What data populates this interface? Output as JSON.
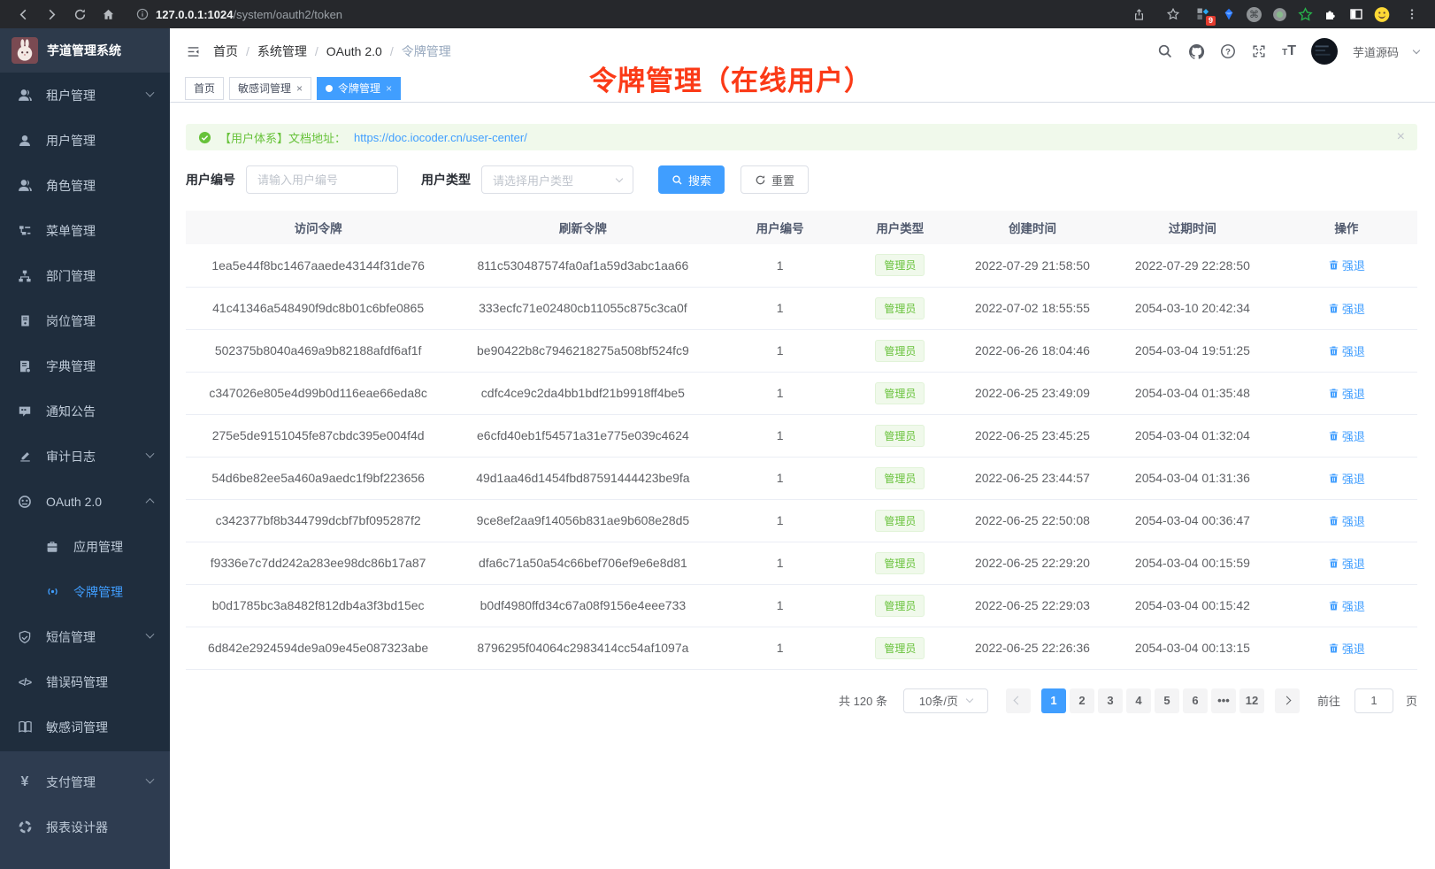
{
  "browser": {
    "url_host": "127.0.0.1:1024",
    "url_path": "/system/oauth2/token",
    "ext_badge": "9"
  },
  "sidebar": {
    "logo_title": "芋道管理系统",
    "menu": [
      {
        "label": "租户管理",
        "icon": "tenant-icon",
        "chevron": "down"
      },
      {
        "label": "用户管理",
        "icon": "user-icon"
      },
      {
        "label": "角色管理",
        "icon": "role-icon"
      },
      {
        "label": "菜单管理",
        "icon": "menu-tree-icon"
      },
      {
        "label": "部门管理",
        "icon": "dept-icon"
      },
      {
        "label": "岗位管理",
        "icon": "post-icon"
      },
      {
        "label": "字典管理",
        "icon": "dict-icon"
      },
      {
        "label": "通知公告",
        "icon": "notice-icon"
      },
      {
        "label": "审计日志",
        "icon": "audit-icon",
        "chevron": "down"
      },
      {
        "label": "OAuth 2.0",
        "icon": "oauth-icon",
        "chevron": "up"
      },
      {
        "label": "应用管理",
        "icon": "app-icon",
        "sub": true
      },
      {
        "label": "令牌管理",
        "icon": "token-icon",
        "sub": true,
        "active": true
      },
      {
        "label": "短信管理",
        "icon": "shield-icon",
        "chevron": "down"
      },
      {
        "label": "错误码管理",
        "icon": "code-icon"
      },
      {
        "label": "敏感词管理",
        "icon": "book-icon"
      }
    ],
    "menu_bottom": [
      {
        "label": "支付管理",
        "icon": "pay-icon",
        "chevron": "down"
      },
      {
        "label": "报表设计器",
        "icon": "report-icon"
      }
    ]
  },
  "topbar": {
    "breadcrumb": [
      "首页",
      "系统管理",
      "OAuth 2.0",
      "令牌管理"
    ],
    "username": "芋道源码"
  },
  "tabs": [
    {
      "label": "首页",
      "closable": false,
      "active": false
    },
    {
      "label": "敏感词管理",
      "closable": true,
      "active": false
    },
    {
      "label": "令牌管理",
      "closable": true,
      "active": true
    }
  ],
  "annotation": "令牌管理（在线用户）",
  "alert": {
    "prefix": "【用户体系】文档地址：",
    "link": "https://doc.iocoder.cn/user-center/"
  },
  "filters": {
    "user_id_label": "用户编号",
    "user_id_placeholder": "请输入用户编号",
    "user_type_label": "用户类型",
    "user_type_placeholder": "请选择用户类型",
    "search_label": "搜索",
    "reset_label": "重置"
  },
  "table": {
    "columns": [
      "访问令牌",
      "刷新令牌",
      "用户编号",
      "用户类型",
      "创建时间",
      "过期时间",
      "操作"
    ],
    "action_label": "强退",
    "rows": [
      {
        "access": "1ea5e44f8bc1467aaede43144f31de76",
        "refresh": "811c530487574fa0af1a59d3abc1aa66",
        "user_id": "1",
        "user_type": "管理员",
        "created": "2022-07-29 21:58:50",
        "expires": "2022-07-29 22:28:50"
      },
      {
        "access": "41c41346a548490f9dc8b01c6bfe0865",
        "refresh": "333ecfc71e02480cb11055c875c3ca0f",
        "user_id": "1",
        "user_type": "管理员",
        "created": "2022-07-02 18:55:55",
        "expires": "2054-03-10 20:42:34"
      },
      {
        "access": "502375b8040a469a9b82188afdf6af1f",
        "refresh": "be90422b8c7946218275a508bf524fc9",
        "user_id": "1",
        "user_type": "管理员",
        "created": "2022-06-26 18:04:46",
        "expires": "2054-03-04 19:51:25"
      },
      {
        "access": "c347026e805e4d99b0d116eae66eda8c",
        "refresh": "cdfc4ce9c2da4bb1bdf21b9918ff4be5",
        "user_id": "1",
        "user_type": "管理员",
        "created": "2022-06-25 23:49:09",
        "expires": "2054-03-04 01:35:48"
      },
      {
        "access": "275e5de9151045fe87cbdc395e004f4d",
        "refresh": "e6cfd40eb1f54571a31e775e039c4624",
        "user_id": "1",
        "user_type": "管理员",
        "created": "2022-06-25 23:45:25",
        "expires": "2054-03-04 01:32:04"
      },
      {
        "access": "54d6be82ee5a460a9aedc1f9bf223656",
        "refresh": "49d1aa46d1454fbd87591444423be9fa",
        "user_id": "1",
        "user_type": "管理员",
        "created": "2022-06-25 23:44:57",
        "expires": "2054-03-04 01:31:36"
      },
      {
        "access": "c342377bf8b344799dcbf7bf095287f2",
        "refresh": "9ce8ef2aa9f14056b831ae9b608e28d5",
        "user_id": "1",
        "user_type": "管理员",
        "created": "2022-06-25 22:50:08",
        "expires": "2054-03-04 00:36:47"
      },
      {
        "access": "f9336e7c7dd242a283ee98dc86b17a87",
        "refresh": "dfa6c71a50a54c66bef706ef9e6e8d81",
        "user_id": "1",
        "user_type": "管理员",
        "created": "2022-06-25 22:29:20",
        "expires": "2054-03-04 00:15:59"
      },
      {
        "access": "b0d1785bc3a8482f812db4a3f3bd15ec",
        "refresh": "b0df4980ffd34c67a08f9156e4eee733",
        "user_id": "1",
        "user_type": "管理员",
        "created": "2022-06-25 22:29:03",
        "expires": "2054-03-04 00:15:42"
      },
      {
        "access": "6d842e2924594de9a09e45e087323abe",
        "refresh": "8796295f04064c2983414cc54af1097a",
        "user_id": "1",
        "user_type": "管理员",
        "created": "2022-06-25 22:26:36",
        "expires": "2054-03-04 00:13:15"
      }
    ]
  },
  "pagination": {
    "total": "共 120 条",
    "page_size": "10条/页",
    "pages": [
      "1",
      "2",
      "3",
      "4",
      "5",
      "6",
      "•••",
      "12"
    ],
    "active": "1",
    "goto_label": "前往",
    "goto_value": "1",
    "goto_suffix": "页"
  },
  "colors": {
    "primary": "#409eff",
    "success": "#67c23a",
    "annotation_red": "#fb3a17",
    "sidebar_bg": "#1f2d3d",
    "sidebar_text": "#bfcbd9",
    "alert_bg": "#f0f9eb"
  }
}
